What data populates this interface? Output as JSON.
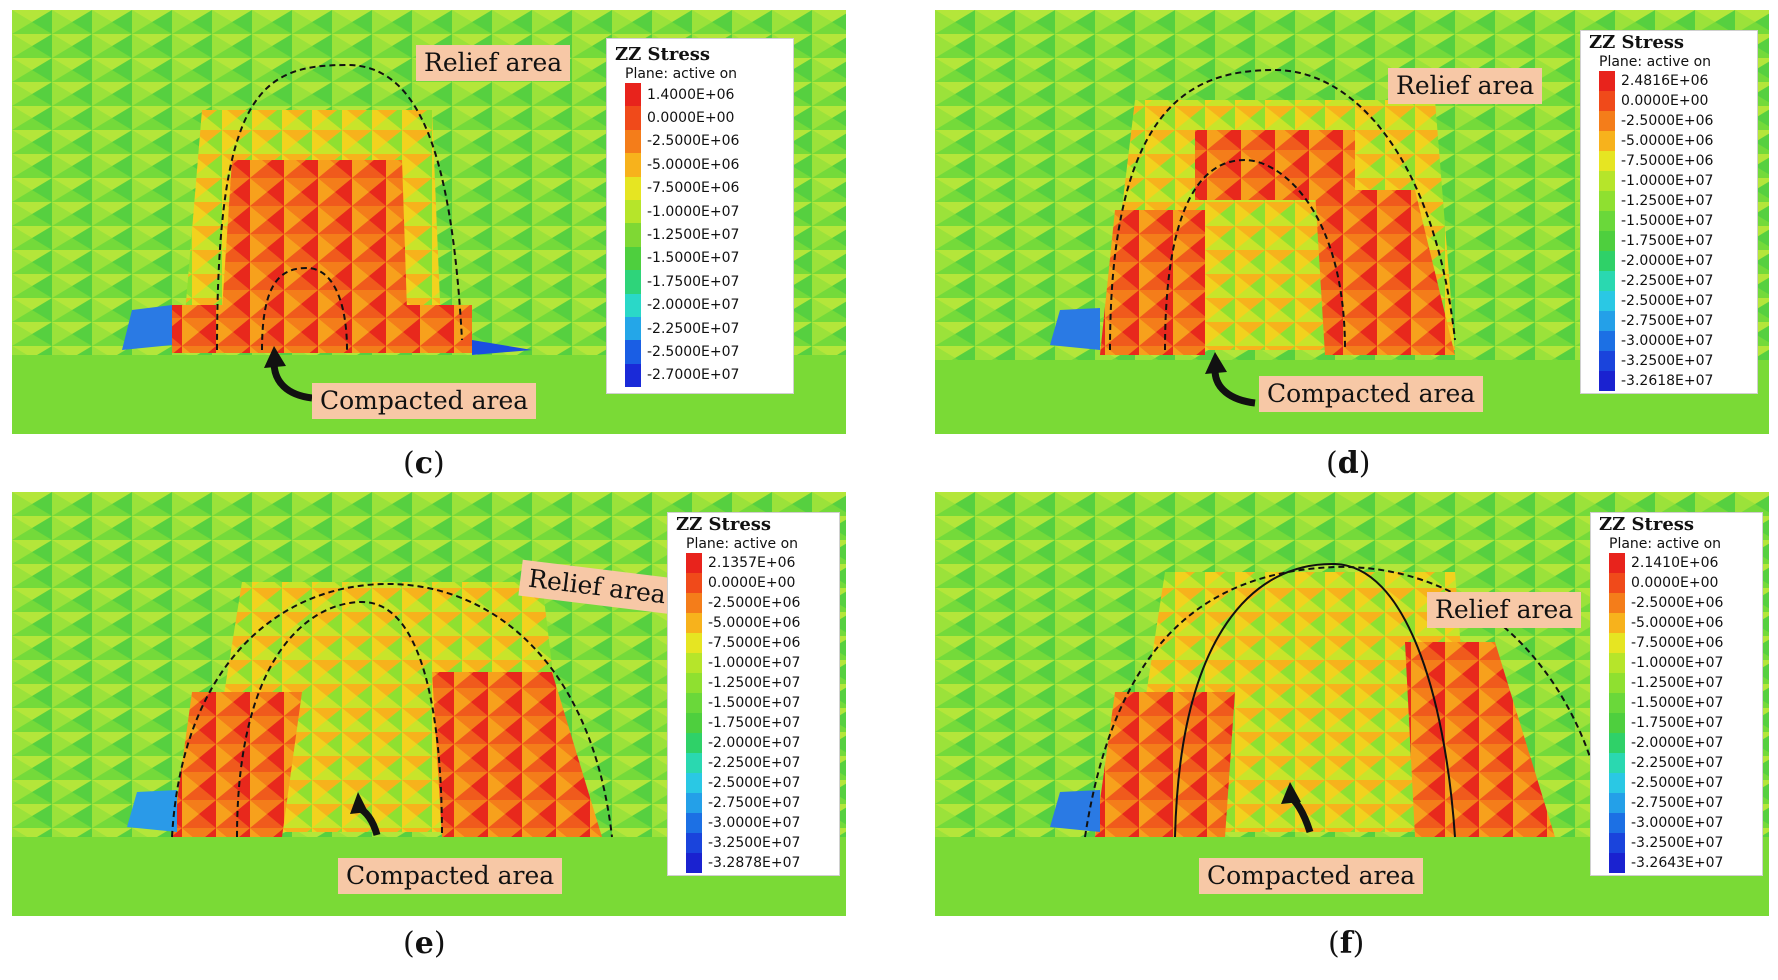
{
  "panels": [
    {
      "id": "c",
      "caption_letter": "c",
      "legend": {
        "title": "ZZ Stress",
        "subtitle": "Plane: active on",
        "values": [
          "1.4000E+06",
          "0.0000E+00",
          "-2.5000E+06",
          "-5.0000E+06",
          "-7.5000E+06",
          "-1.0000E+07",
          "-1.2500E+07",
          "-1.5000E+07",
          "-1.7500E+07",
          "-2.0000E+07",
          "-2.2500E+07",
          "-2.5000E+07",
          "-2.7000E+07"
        ]
      },
      "relief_label": "Relief area",
      "compacted_label": "Compacted area"
    },
    {
      "id": "d",
      "caption_letter": "d",
      "legend": {
        "title": "ZZ Stress",
        "subtitle": "Plane: active on",
        "values": [
          "2.4816E+06",
          "0.0000E+00",
          "-2.5000E+06",
          "-5.0000E+06",
          "-7.5000E+06",
          "-1.0000E+07",
          "-1.2500E+07",
          "-1.5000E+07",
          "-1.7500E+07",
          "-2.0000E+07",
          "-2.2500E+07",
          "-2.5000E+07",
          "-2.7500E+07",
          "-3.0000E+07",
          "-3.2500E+07",
          "-3.2618E+07"
        ]
      },
      "relief_label": "Relief area",
      "compacted_label": "Compacted area"
    },
    {
      "id": "e",
      "caption_letter": "e",
      "legend": {
        "title": "ZZ Stress",
        "subtitle": "Plane: active on",
        "values": [
          "2.1357E+06",
          "0.0000E+00",
          "-2.5000E+06",
          "-5.0000E+06",
          "-7.5000E+06",
          "-1.0000E+07",
          "-1.2500E+07",
          "-1.5000E+07",
          "-1.7500E+07",
          "-2.0000E+07",
          "-2.2500E+07",
          "-2.5000E+07",
          "-2.7500E+07",
          "-3.0000E+07",
          "-3.2500E+07",
          "-3.2878E+07"
        ]
      },
      "relief_label": "Relief area",
      "compacted_label": "Compacted area"
    },
    {
      "id": "f",
      "caption_letter": "f",
      "legend": {
        "title": "ZZ Stress",
        "subtitle": "Plane: active on",
        "values": [
          "2.1410E+06",
          "0.0000E+00",
          "-2.5000E+06",
          "-5.0000E+06",
          "-7.5000E+06",
          "-1.0000E+07",
          "-1.2500E+07",
          "-1.5000E+07",
          "-1.7500E+07",
          "-2.0000E+07",
          "-2.2500E+07",
          "-2.5000E+07",
          "-2.7500E+07",
          "-3.0000E+07",
          "-3.2500E+07",
          "-3.2643E+07"
        ]
      },
      "relief_label": "Relief area",
      "compacted_label": "Compacted area"
    }
  ],
  "colors": {
    "scale_13": [
      "#e8231c",
      "#f04a1a",
      "#f47d1a",
      "#f7b21c",
      "#e6e522",
      "#b6e52a",
      "#7fd834",
      "#4ecf3e",
      "#2ed47a",
      "#2ad8c8",
      "#24a6e8",
      "#1a5ee4",
      "#1a2ad8"
    ],
    "scale_16": [
      "#e8231c",
      "#f04a1a",
      "#f47d1a",
      "#f7b21c",
      "#e6e522",
      "#b6e52a",
      "#8fe030",
      "#6ad83a",
      "#4ecf3e",
      "#2fd168",
      "#2ad8b0",
      "#2ac8e4",
      "#24a0e8",
      "#1c70e4",
      "#1a44dc",
      "#1a22d0"
    ],
    "callout_fill": "#f7c8a6"
  }
}
